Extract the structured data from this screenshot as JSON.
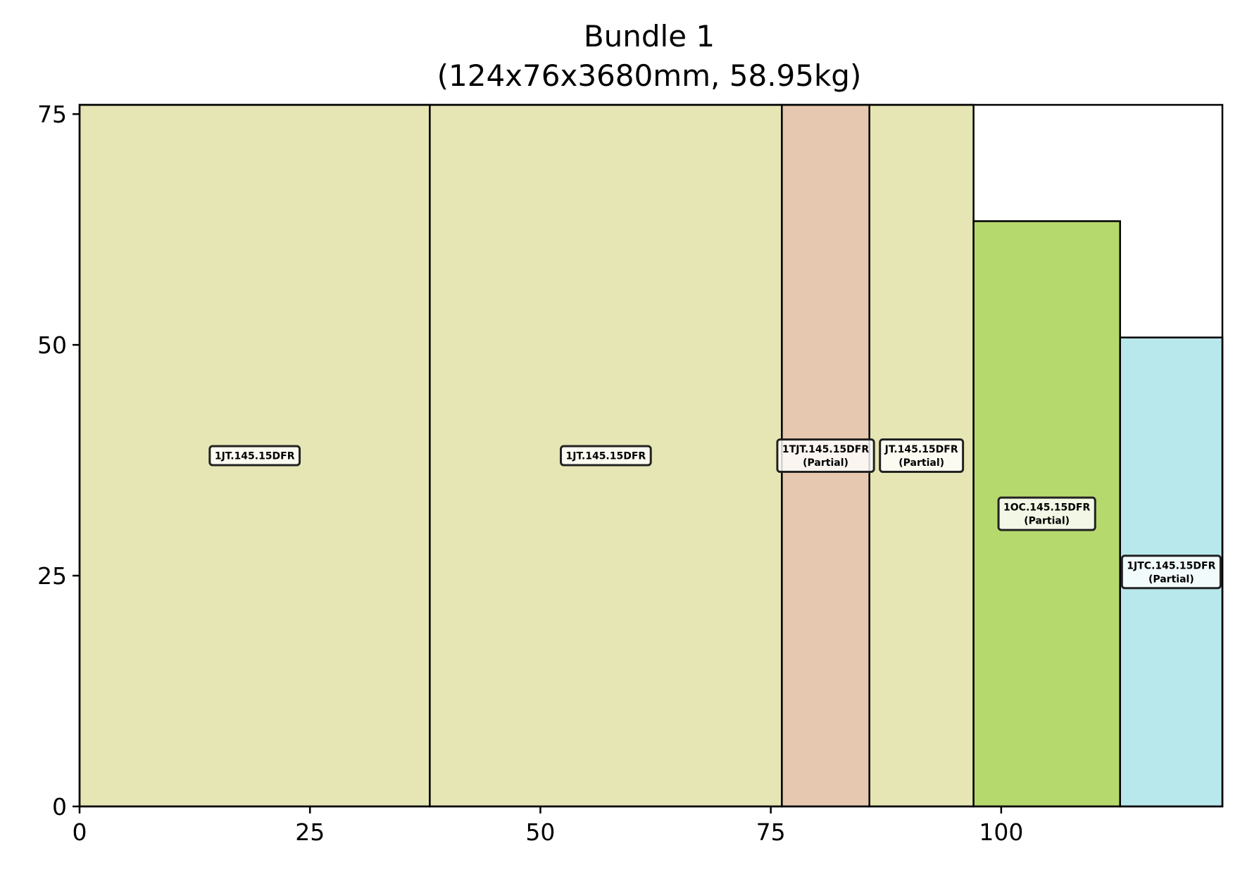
{
  "chart_data": {
    "type": "rectangle-packing",
    "title": "Bundle 1",
    "subtitle": "(124x76x3680mm, 58.95kg)",
    "xlim": [
      0,
      124
    ],
    "ylim": [
      0,
      76
    ],
    "xticks": [
      0,
      25,
      50,
      75,
      100
    ],
    "yticks": [
      0,
      25,
      50,
      75
    ],
    "grid": false,
    "rects": [
      {
        "x": 0,
        "y": 0,
        "w": 38,
        "h": 76,
        "color": "#e6e6b5",
        "label": "1JT.145.15DFR",
        "sub": ""
      },
      {
        "x": 38,
        "y": 0,
        "w": 38.2,
        "h": 76,
        "color": "#e6e6b5",
        "label": "1JT.145.15DFR",
        "sub": ""
      },
      {
        "x": 76.2,
        "y": 0,
        "w": 9.5,
        "h": 76,
        "color": "#e6c8b0",
        "label": "1TJT.145.15DFR",
        "sub": "(Partial)"
      },
      {
        "x": 85.7,
        "y": 0,
        "w": 11.3,
        "h": 76,
        "color": "#e6e6b5",
        "label": "JT.145.15DFR",
        "sub": "(Partial)"
      },
      {
        "x": 97,
        "y": 0,
        "w": 15.9,
        "h": 63.4,
        "color": "#b6d96e",
        "label": "1OC.145.15DFR",
        "sub": "(Partial)"
      },
      {
        "x": 112.9,
        "y": 0,
        "w": 11.1,
        "h": 50.8,
        "color": "#b8e8ec",
        "label": "1JTC.145.15DFR",
        "sub": "(Partial)"
      }
    ]
  }
}
